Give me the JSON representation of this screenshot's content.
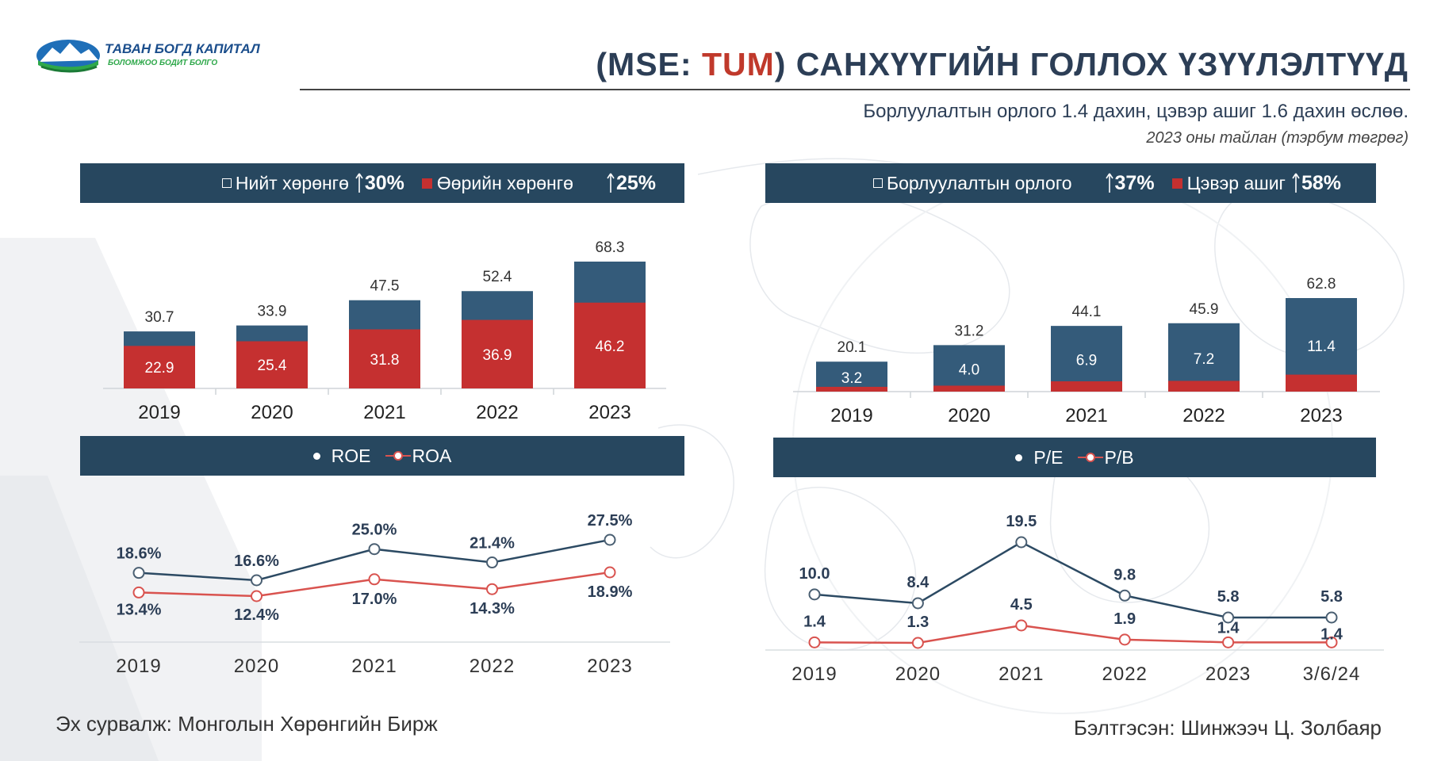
{
  "header": {
    "logo_name": "ТАВАН БОГД КАПИТАЛ",
    "logo_tagline": "БОЛОМЖОО БОДИТ БОЛГО",
    "title_prefix": "(MSE: ",
    "ticker": "TUM",
    "title_suffix": ")  САНХҮҮГИЙН ГОЛЛОХ ҮЗҮҮЛЭЛТҮҮД",
    "subtitle": "Борлуулалтын орлого 1.4 дахин, цэвэр ашиг 1.6 дахин өслөө.",
    "note": "2023 оны тайлан (тэрбум төгрөг)"
  },
  "footer": {
    "source": "Эх сурвалж: Монголын Хөрөнгийн Бирж",
    "author": "Бэлтгэсэн: Шинжээч Ц. Золбаяр"
  },
  "colors": {
    "navy": "#27475f",
    "bar_blue": "#345b7a",
    "red": "#c53030",
    "line_navy": "#2c4a63",
    "line_red": "#d9534f"
  },
  "chart_data": [
    {
      "type": "bar",
      "id": "assets",
      "categories": [
        "2019",
        "2020",
        "2021",
        "2022",
        "2023"
      ],
      "series": [
        {
          "name": "Нийт хөрөнгө",
          "values": [
            30.7,
            33.9,
            47.5,
            52.4,
            68.3
          ],
          "growth": "30%"
        },
        {
          "name": "Өөрийн хөрөнгө",
          "values": [
            22.9,
            25.4,
            31.8,
            36.9,
            46.2
          ],
          "growth": "25%"
        }
      ],
      "ylim": [
        0,
        68.3
      ],
      "legend": "top",
      "grid": false
    },
    {
      "type": "bar",
      "id": "income",
      "categories": [
        "2019",
        "2020",
        "2021",
        "2022",
        "2023"
      ],
      "series": [
        {
          "name": "Борлуулалтын орлого",
          "values": [
            20.1,
            31.2,
            44.1,
            45.9,
            62.8
          ],
          "growth": "37%"
        },
        {
          "name": "Цэвэр ашиг",
          "values": [
            3.2,
            4.0,
            6.9,
            7.2,
            11.4
          ],
          "growth": "58%"
        }
      ],
      "ylim": [
        0,
        62.8
      ],
      "legend": "top",
      "grid": false
    },
    {
      "type": "line",
      "id": "returns",
      "x": [
        "2019",
        "2020",
        "2021",
        "2022",
        "2023"
      ],
      "series": [
        {
          "name": "ROE",
          "values": [
            18.6,
            16.6,
            25.0,
            21.4,
            27.5
          ],
          "labels": [
            "18.6%",
            "16.6%",
            "25.0%",
            "21.4%",
            "27.5%"
          ]
        },
        {
          "name": "ROA",
          "values": [
            13.4,
            12.4,
            17.0,
            14.3,
            18.9
          ],
          "labels": [
            "13.4%",
            "12.4%",
            "17.0%",
            "14.3%",
            "18.9%"
          ]
        }
      ],
      "legend": "top",
      "grid": false
    },
    {
      "type": "line",
      "id": "multiples",
      "x": [
        "2019",
        "2020",
        "2021",
        "2022",
        "2023",
        "3/6/24"
      ],
      "series": [
        {
          "name": "P/E",
          "values": [
            10.0,
            8.4,
            19.5,
            9.8,
            5.8,
            5.8
          ],
          "labels": [
            "10.0",
            "8.4",
            "19.5",
            "9.8",
            "5.8",
            "5.8"
          ]
        },
        {
          "name": "P/B",
          "values": [
            1.4,
            1.3,
            4.5,
            1.9,
            1.4,
            1.4
          ],
          "labels": [
            "1.4",
            "1.3",
            "4.5",
            "1.9",
            "1.4",
            "1.4"
          ]
        }
      ],
      "legend": "top",
      "grid": false
    }
  ]
}
